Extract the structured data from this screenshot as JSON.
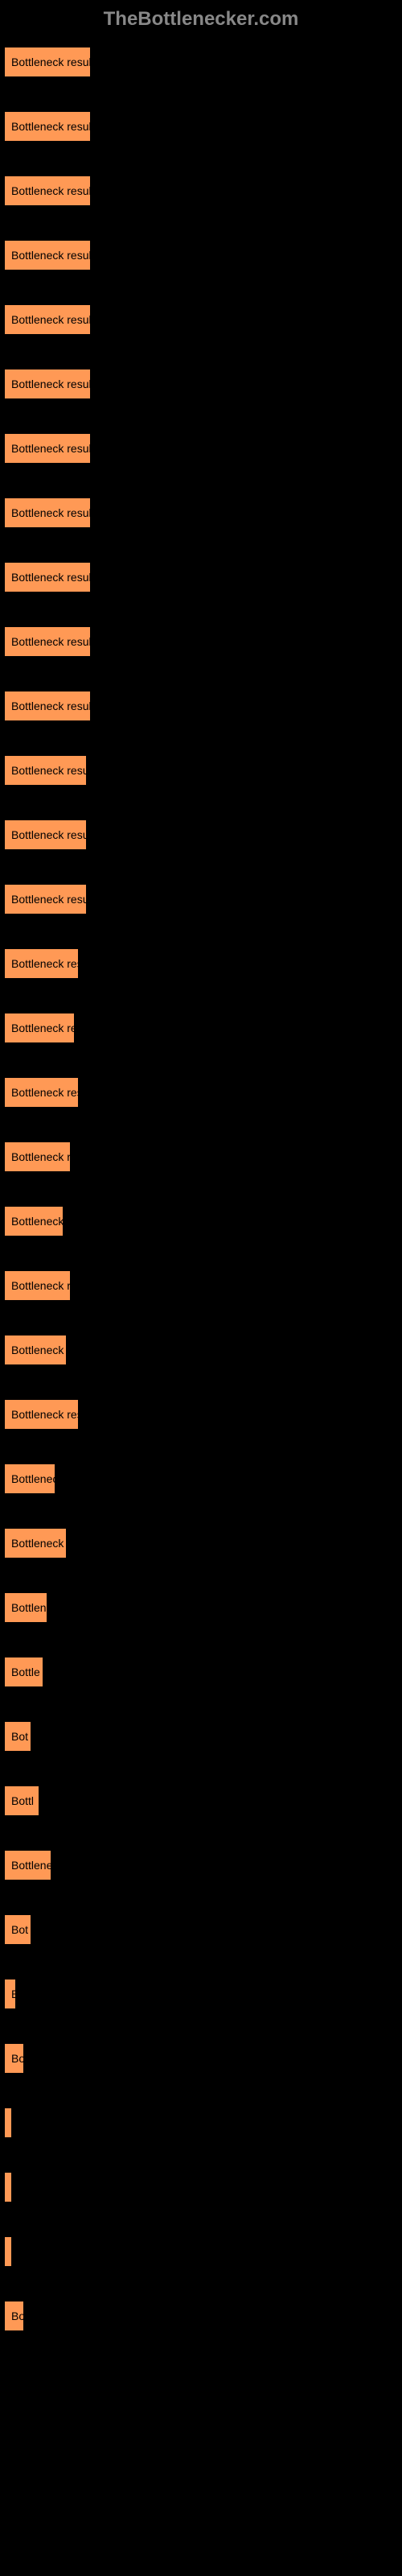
{
  "header": {
    "title": "TheBottlenecker.com"
  },
  "chart": {
    "type": "bar",
    "background_color": "#000000",
    "bar_color": "#ff9955",
    "bar_border_color": "#000000",
    "text_color": "#000000",
    "header_color": "#888888",
    "max_width_percent": 100,
    "bars": [
      {
        "label": "Bottleneck result",
        "width": 22
      },
      {
        "label": "Bottleneck result",
        "width": 22
      },
      {
        "label": "Bottleneck result",
        "width": 22
      },
      {
        "label": "Bottleneck result",
        "width": 22
      },
      {
        "label": "Bottleneck result",
        "width": 22
      },
      {
        "label": "Bottleneck result",
        "width": 22
      },
      {
        "label": "Bottleneck result",
        "width": 22
      },
      {
        "label": "Bottleneck result",
        "width": 22
      },
      {
        "label": "Bottleneck result",
        "width": 22
      },
      {
        "label": "Bottleneck result",
        "width": 22
      },
      {
        "label": "Bottleneck result",
        "width": 22
      },
      {
        "label": "Bottleneck result",
        "width": 21
      },
      {
        "label": "Bottleneck result",
        "width": 21
      },
      {
        "label": "Bottleneck result",
        "width": 21
      },
      {
        "label": "Bottleneck result",
        "width": 19
      },
      {
        "label": "Bottleneck result",
        "width": 18
      },
      {
        "label": "Bottleneck result",
        "width": 19
      },
      {
        "label": "Bottleneck resu",
        "width": 17
      },
      {
        "label": "Bottleneck r",
        "width": 15
      },
      {
        "label": "Bottleneck resu",
        "width": 17
      },
      {
        "label": "Bottleneck res",
        "width": 16
      },
      {
        "label": "Bottleneck result",
        "width": 19
      },
      {
        "label": "Bottleneck",
        "width": 13
      },
      {
        "label": "Bottleneck res",
        "width": 16
      },
      {
        "label": "Bottlen",
        "width": 11
      },
      {
        "label": "Bottle",
        "width": 10
      },
      {
        "label": "Bot",
        "width": 7
      },
      {
        "label": "Bottl",
        "width": 9
      },
      {
        "label": "Bottlene",
        "width": 12
      },
      {
        "label": "Bot",
        "width": 7
      },
      {
        "label": "B",
        "width": 3
      },
      {
        "label": "Bo",
        "width": 5
      },
      {
        "label": "",
        "width": 2
      },
      {
        "label": "",
        "width": 1
      },
      {
        "label": "",
        "width": 0.5
      },
      {
        "label": "Bo",
        "width": 5
      }
    ]
  }
}
